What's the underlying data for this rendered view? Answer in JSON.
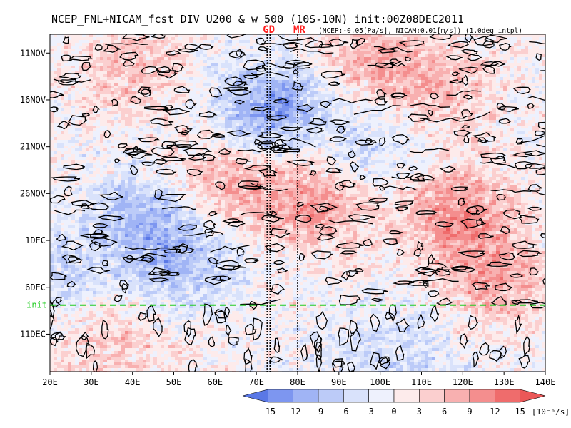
{
  "chart_data": {
    "type": "heatmap",
    "title": "NCEP_FNL+NICAM_fcst DIV U200 & w 500 (10S-10N) init:00Z08DEC2011",
    "subtitle": "(NCEP:-0.05[Pa/s], NICAM:0.01[m/s]) (1.0deg intpl)",
    "x_ticks": [
      {
        "label": "20E",
        "lon": 20
      },
      {
        "label": "30E",
        "lon": 30
      },
      {
        "label": "40E",
        "lon": 40
      },
      {
        "label": "50E",
        "lon": 50
      },
      {
        "label": "60E",
        "lon": 60
      },
      {
        "label": "70E",
        "lon": 70
      },
      {
        "label": "80E",
        "lon": 80
      },
      {
        "label": "90E",
        "lon": 90
      },
      {
        "label": "100E",
        "lon": 100
      },
      {
        "label": "110E",
        "lon": 110
      },
      {
        "label": "120E",
        "lon": 120
      },
      {
        "label": "130E",
        "lon": 130
      },
      {
        "label": "140E",
        "lon": 140
      }
    ],
    "x_range": [
      20,
      140
    ],
    "y_range_days_from_top": [
      0,
      36
    ],
    "y_ticks": [
      {
        "label": "11NOV",
        "day": 2
      },
      {
        "label": "16NOV",
        "day": 7
      },
      {
        "label": "21NOV",
        "day": 12
      },
      {
        "label": "26NOV",
        "day": 17
      },
      {
        "label": "1DEC",
        "day": 22
      },
      {
        "label": "6DEC",
        "day": 27
      },
      {
        "label": "11DEC",
        "day": 32
      }
    ],
    "init_line": {
      "label": "init",
      "day": 28.9,
      "color": "#22cc22"
    },
    "markers": [
      {
        "label": "GD",
        "lons": [
          72.6,
          73.3
        ],
        "color": "#ff2020"
      },
      {
        "label": "MR",
        "lons": [
          80.0
        ],
        "color": "#ff2020"
      }
    ],
    "colorbar": {
      "levels": [
        "-15",
        "-12",
        "-9",
        "-6",
        "-3",
        "0",
        "3",
        "6",
        "9",
        "12",
        "15"
      ],
      "unit": "[10⁻⁶/s]",
      "colors": [
        "#5a78e6",
        "#7d96f0",
        "#a0b4f5",
        "#bccbf8",
        "#d9e2fb",
        "#eef1fd",
        "#fdebeb",
        "#fbcfcf",
        "#f8b0b0",
        "#f48e8e",
        "#ef6c6c",
        "#eb5858"
      ]
    },
    "field_features": [
      {
        "type": "positive",
        "lon": 118,
        "day": 19,
        "strength": 0.9
      },
      {
        "type": "positive",
        "lon": 62,
        "day": 15,
        "strength": 0.8
      },
      {
        "type": "positive",
        "lon": 83,
        "day": 18,
        "strength": 0.8
      },
      {
        "type": "positive",
        "lon": 97,
        "day": 2,
        "strength": 0.6
      },
      {
        "type": "positive",
        "lon": 128,
        "day": 26,
        "strength": 0.7
      },
      {
        "type": "positive",
        "lon": 113,
        "day": 6,
        "strength": 0.6
      },
      {
        "type": "positive",
        "lon": 40,
        "day": 4,
        "strength": 0.5
      },
      {
        "type": "positive",
        "lon": 35,
        "day": 33,
        "strength": 0.5
      },
      {
        "type": "negative",
        "lon": 44,
        "day": 19,
        "strength": 0.8
      },
      {
        "type": "negative",
        "lon": 52,
        "day": 25,
        "strength": 0.7
      },
      {
        "type": "negative",
        "lon": 76,
        "day": 7,
        "strength": 0.7
      },
      {
        "type": "negative",
        "lon": 70,
        "day": 10,
        "strength": 0.6
      },
      {
        "type": "negative",
        "lon": 100,
        "day": 12,
        "strength": 0.5
      },
      {
        "type": "negative",
        "lon": 103,
        "day": 34,
        "strength": 0.5
      },
      {
        "type": "negative",
        "lon": 22,
        "day": 26,
        "strength": 0.5
      }
    ]
  }
}
